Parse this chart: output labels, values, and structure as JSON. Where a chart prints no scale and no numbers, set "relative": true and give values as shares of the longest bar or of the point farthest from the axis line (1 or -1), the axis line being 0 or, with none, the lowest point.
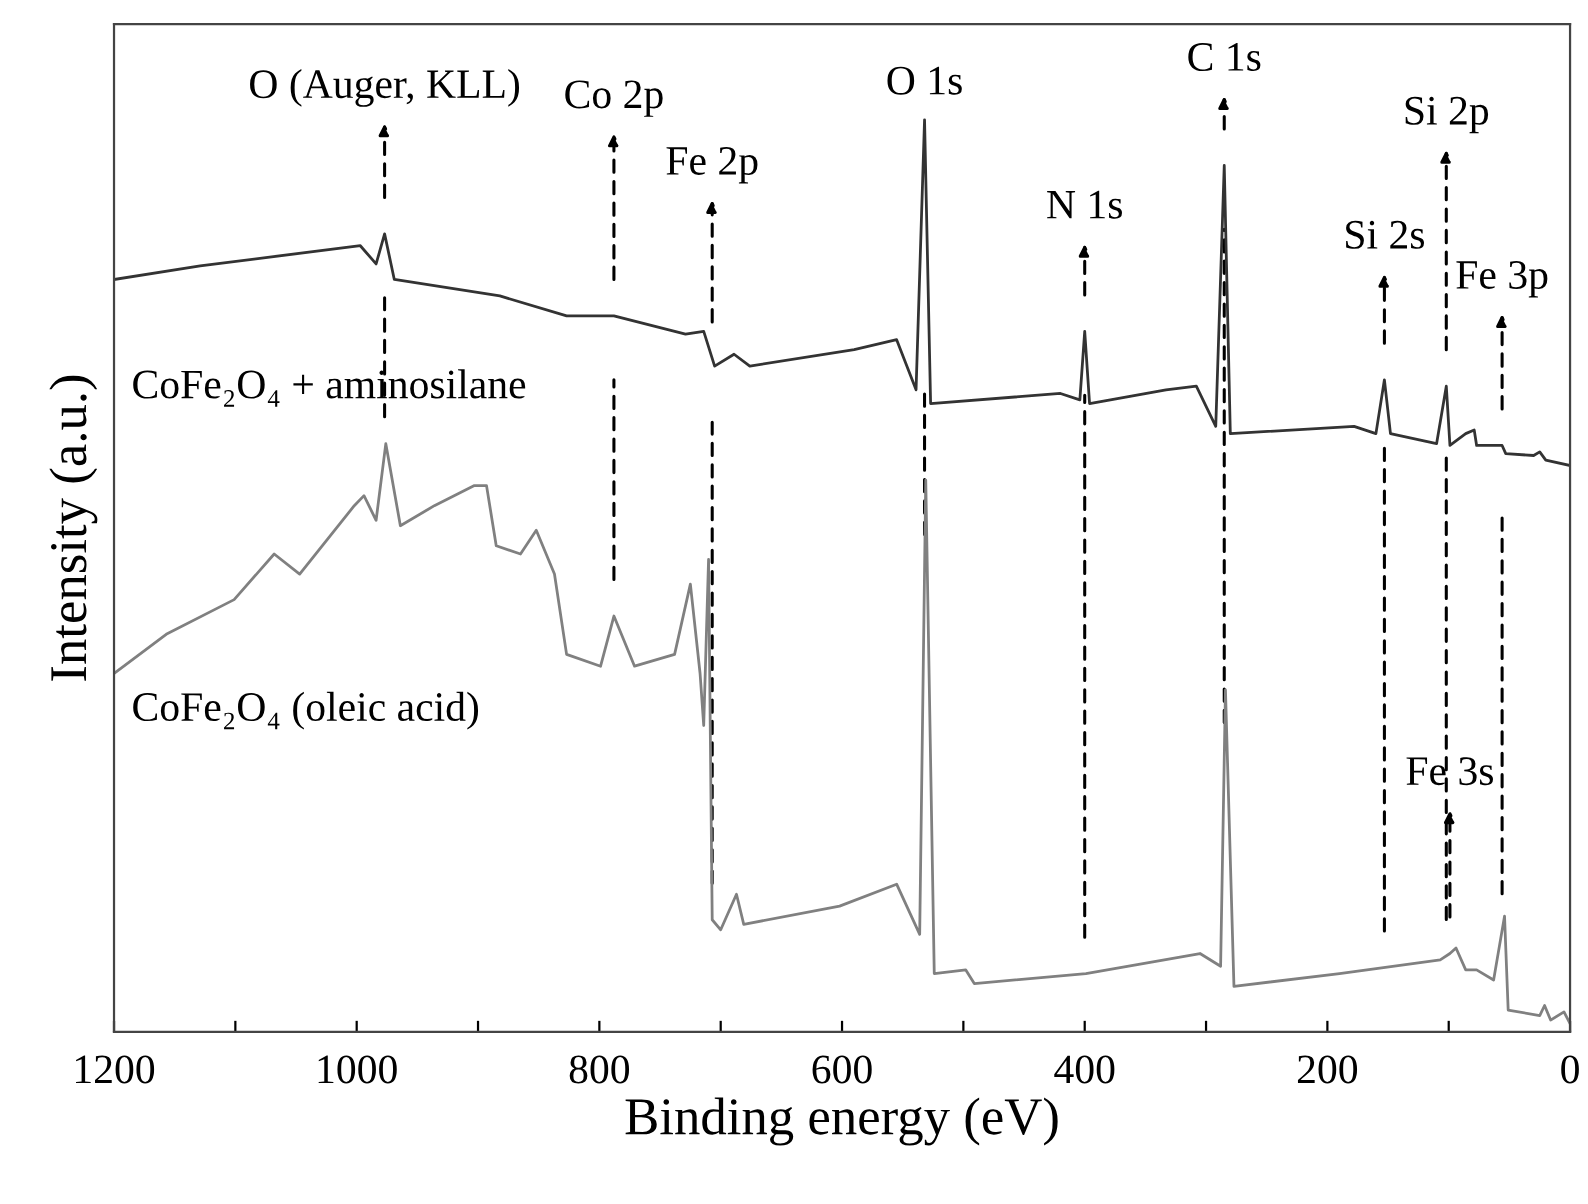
{
  "chart_data": {
    "type": "line",
    "relative": true,
    "xlabel": "Binding energy (eV)",
    "ylabel": "Intensity (a.u.)",
    "xlim": [
      1200,
      0
    ],
    "xticks": [
      1200,
      {
        "value": 1100,
        "label": null
      },
      1000,
      {
        "value": 900,
        "label": null
      },
      800,
      {
        "value": 700,
        "label": null
      },
      600,
      {
        "value": 500,
        "label": null
      },
      400,
      {
        "value": 300,
        "label": null
      },
      200,
      {
        "value": 100,
        "label": null
      },
      0
    ],
    "grid": false,
    "legend": false,
    "marker": "none",
    "line_style": "solid",
    "series": [
      {
        "name": "CoFe₂O₄ + aminosilane",
        "color": "#333333",
        "x": [
          1200,
          1129,
          997,
          984,
          977,
          969,
          882,
          827,
          788,
          729,
          714,
          705,
          689,
          676,
          590,
          555,
          539,
          532,
          527,
          420,
          404,
          400,
          396,
          333,
          308,
          292,
          285,
          280,
          178,
          160,
          153,
          148,
          110,
          102,
          99,
          86,
          79,
          77,
          56,
          53,
          30,
          25,
          20,
          0
        ],
        "values": [
          0.825,
          0.84,
          0.862,
          0.842,
          0.875,
          0.825,
          0.807,
          0.785,
          0.785,
          0.765,
          0.768,
          0.73,
          0.743,
          0.73,
          0.748,
          0.759,
          0.704,
          1,
          0.689,
          0.7,
          0.693,
          0.768,
          0.689,
          0.704,
          0.708,
          0.664,
          0.95,
          0.656,
          0.664,
          0.656,
          0.715,
          0.656,
          0.645,
          0.708,
          0.643,
          0.656,
          0.66,
          0.643,
          0.643,
          0.634,
          0.632,
          0.636,
          0.627,
          0.621
        ]
      },
      {
        "name": "CoFe₂O₄ (oleic acid)",
        "color": "#808080",
        "x": [
          1200,
          1157,
          1101,
          1068,
          1047,
          1002,
          994,
          984,
          976,
          964,
          936,
          903,
          893,
          885,
          865,
          852,
          837,
          827,
          799,
          788,
          771,
          738,
          725,
          717,
          714,
          710,
          707,
          700,
          687,
          681,
          602,
          555,
          536,
          531,
          524,
          498,
          491,
          399,
          305,
          288,
          284,
          277,
          190,
          107,
          99,
          94,
          86,
          77,
          63,
          54,
          51,
          25,
          21,
          16,
          5,
          0
        ],
        "values": [
          0.393,
          0.436,
          0.474,
          0.524,
          0.502,
          0.577,
          0.588,
          0.561,
          0.645,
          0.555,
          0.577,
          0.599,
          0.599,
          0.533,
          0.524,
          0.55,
          0.502,
          0.414,
          0.401,
          0.456,
          0.401,
          0.414,
          0.491,
          0.393,
          0.336,
          0.518,
          0.123,
          0.112,
          0.151,
          0.118,
          0.138,
          0.162,
          0.107,
          0.605,
          0.064,
          0.068,
          0.053,
          0.064,
          0.086,
          0.072,
          0.375,
          0.05,
          0.064,
          0.079,
          0.086,
          0.092,
          0.068,
          0.068,
          0.057,
          0.127,
          0.024,
          0.018,
          0.029,
          0.013,
          0.022,
          0.009
        ]
      }
    ],
    "annotations": [
      "O (Auger, KLL)",
      "Co 2p",
      "Fe 2p",
      "O 1s",
      "N 1s",
      "C 1s",
      "Si 2s",
      "Si 2p",
      "Fe 3p",
      "Fe 3s"
    ]
  }
}
